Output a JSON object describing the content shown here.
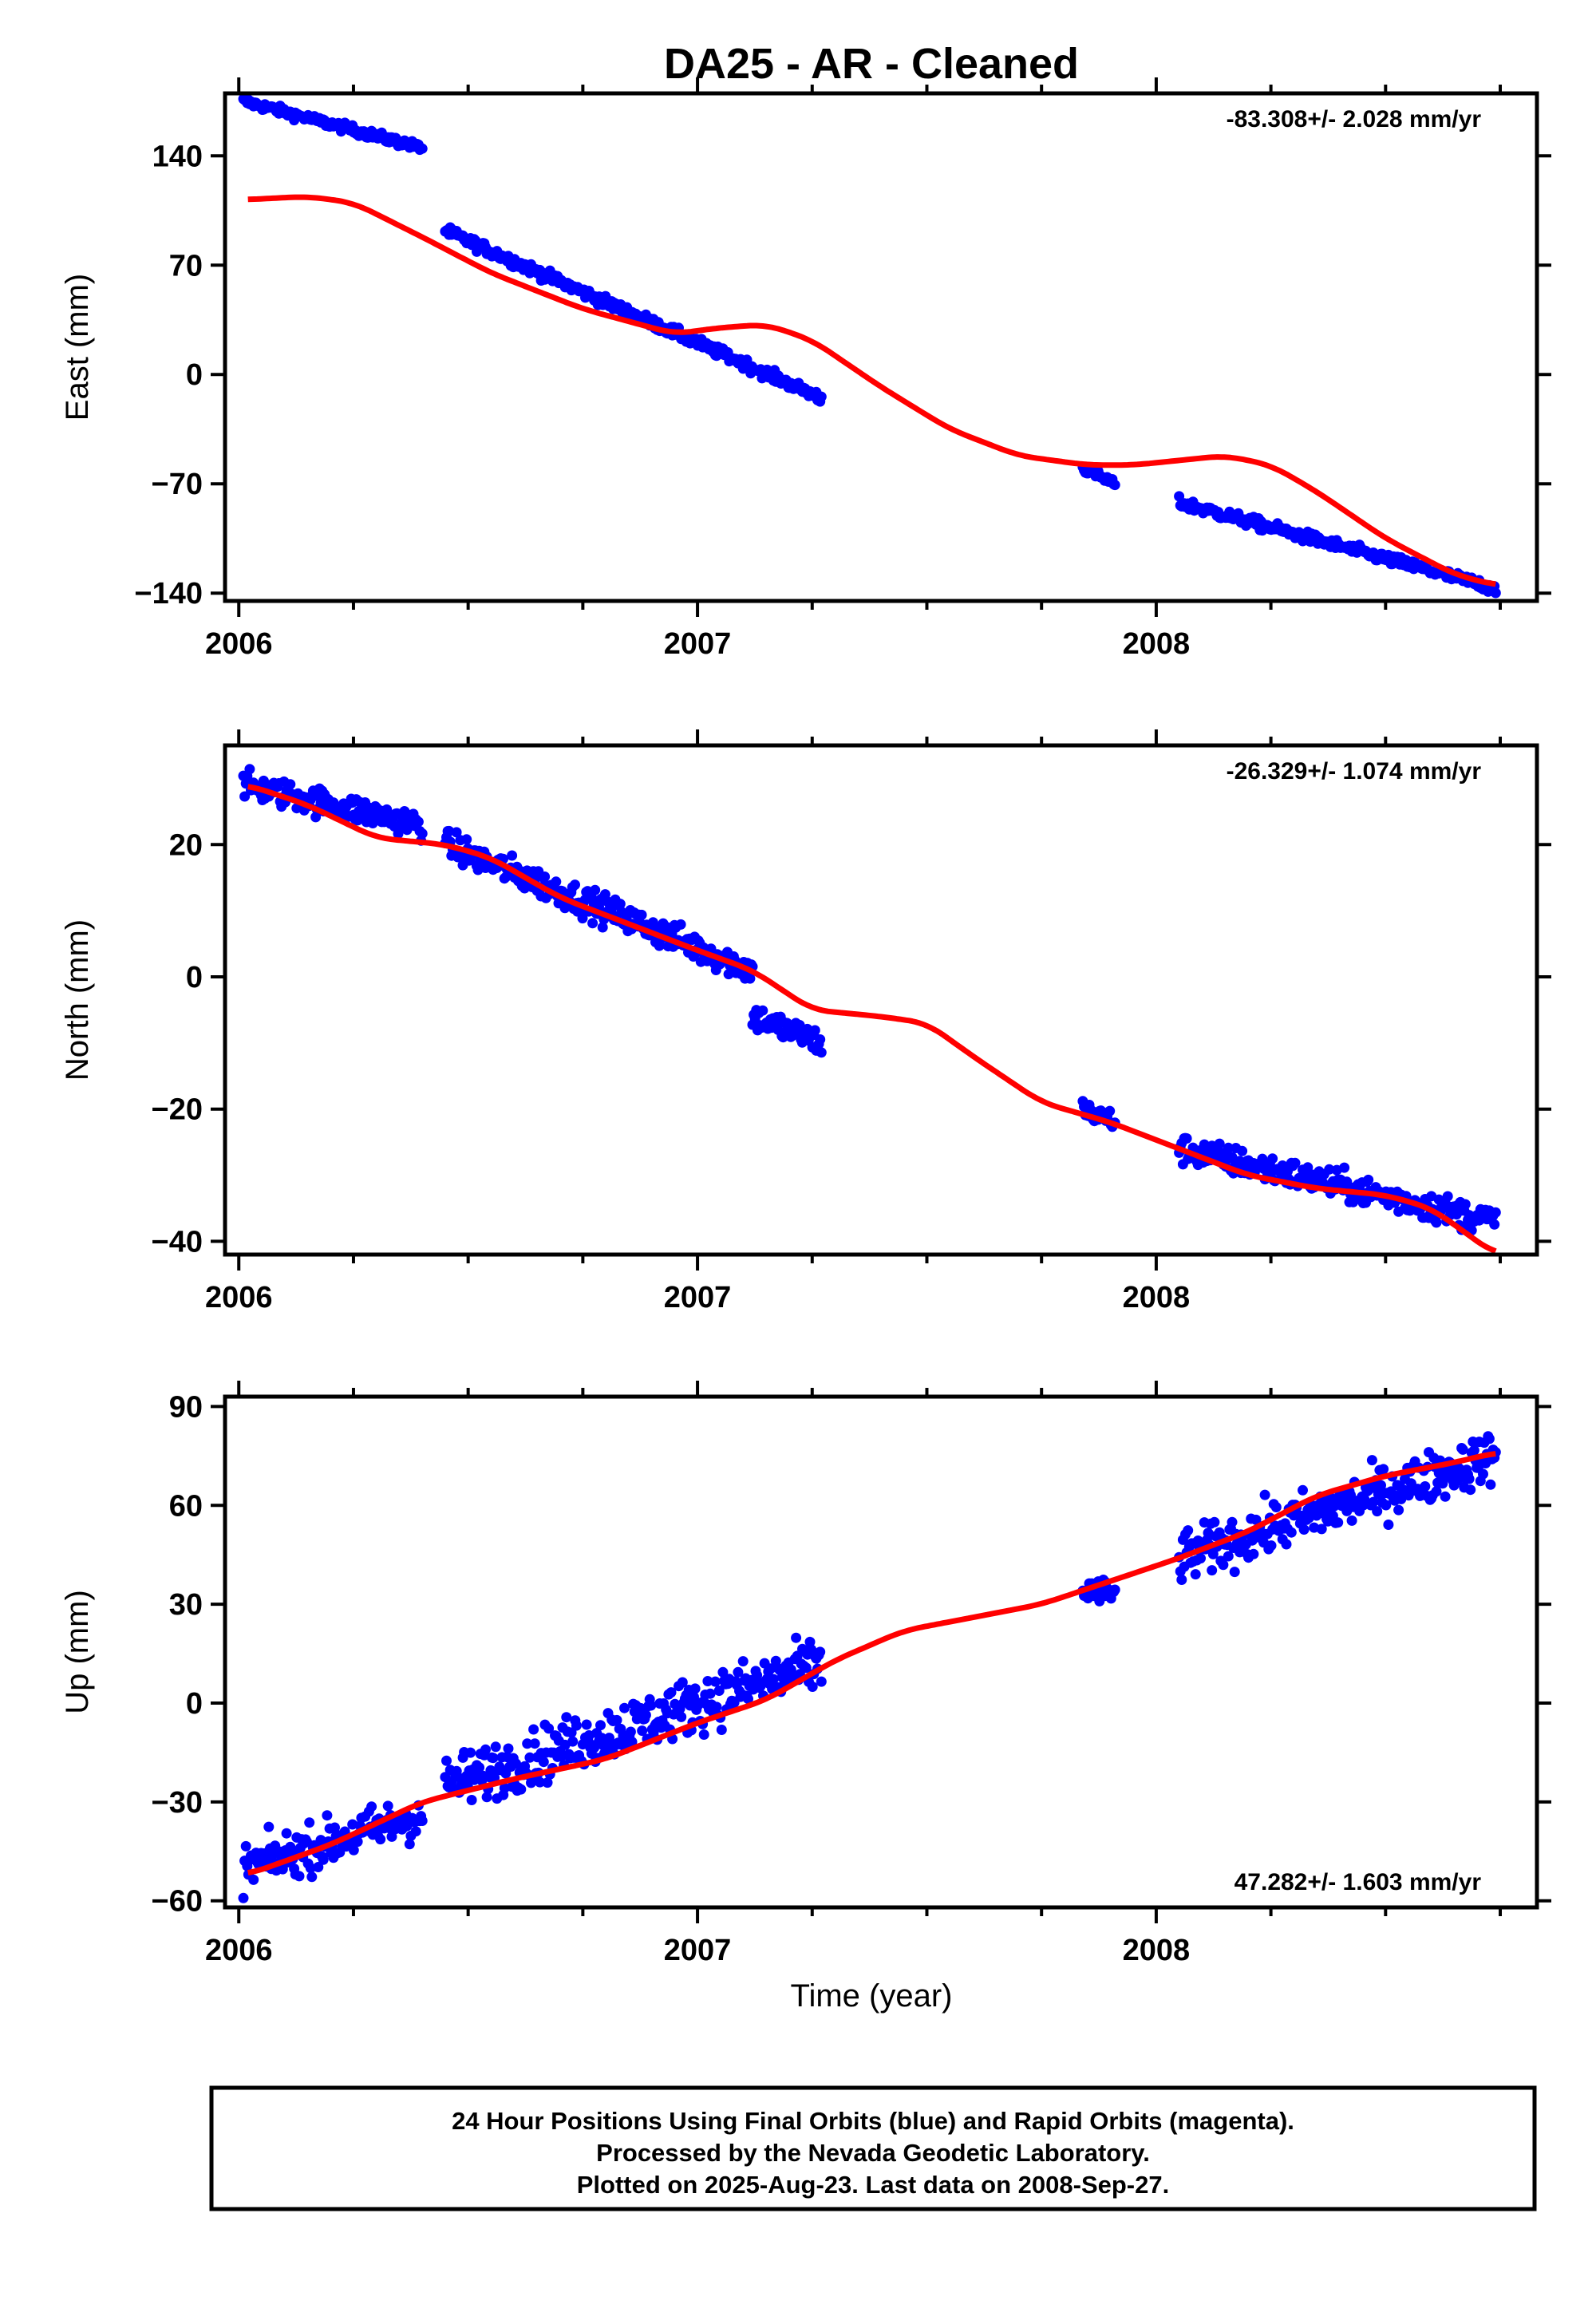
{
  "title": "DA25  - AR - Cleaned",
  "x_axis_label": "Time (year)",
  "footer": {
    "line1": "24 Hour Positions Using Final Orbits (blue) and Rapid Orbits (magenta).",
    "line2": "Processed by the Nevada Geodetic Laboratory.",
    "line3": "Plotted on 2025-Aug-23. Last data on 2008-Sep-27."
  },
  "colors": {
    "data_points": "#0000ff",
    "model_line": "#ff0000",
    "frame": "#000000"
  },
  "chart_data": [
    {
      "type": "scatter",
      "component": "east",
      "ylabel": "East (mm)",
      "rate": "-83.308+/- 2.028 mm/yr",
      "rate_position": "top-right",
      "xlim": [
        2005.97,
        2008.83
      ],
      "ylim": [
        -145,
        180
      ],
      "xticks": [
        2006,
        2007,
        2008
      ],
      "xtick_labels": [
        "2006",
        "2007",
        "2008"
      ],
      "yticks": [
        140,
        70,
        0,
        -70,
        -140
      ],
      "ytick_labels": [
        "140",
        "70",
        "0",
        "−70",
        "−140"
      ],
      "grid": false,
      "segments": [
        {
          "x_start": 2006.01,
          "x_end": 2006.4,
          "y_start": 175,
          "y_end": 145,
          "noise": 2.0
        },
        {
          "x_start": 2006.45,
          "x_end": 2007.27,
          "y_start": 92,
          "y_end": -15,
          "noise": 2.5
        },
        {
          "x_start": 2007.84,
          "x_end": 2007.91,
          "y_start": -60,
          "y_end": -70,
          "noise": 2.0
        },
        {
          "x_start": 2008.05,
          "x_end": 2008.74,
          "y_start": -82,
          "y_end": -137,
          "noise": 2.5
        }
      ],
      "model": {
        "x": [
          2006.02,
          2006.15,
          2006.25,
          2006.4,
          2006.55,
          2006.75,
          2006.95,
          2007.05,
          2007.15,
          2007.25,
          2007.4,
          2007.55,
          2007.7,
          2007.85,
          2007.95,
          2008.05,
          2008.15,
          2008.25,
          2008.35,
          2008.5,
          2008.65,
          2008.74
        ],
        "y": [
          112,
          114,
          110,
          88,
          65,
          42,
          26,
          30,
          32,
          22,
          -8,
          -35,
          -52,
          -58,
          -58,
          -55,
          -52,
          -58,
          -75,
          -105,
          -128,
          -135
        ]
      }
    },
    {
      "type": "scatter",
      "component": "north",
      "ylabel": "North (mm)",
      "rate": "-26.329+/- 1.074 mm/yr",
      "rate_position": "top-right",
      "xlim": [
        2005.97,
        2008.83
      ],
      "ylim": [
        -42,
        35
      ],
      "xticks": [
        2006,
        2007,
        2008
      ],
      "xtick_labels": [
        "2006",
        "2007",
        "2008"
      ],
      "yticks": [
        20,
        0,
        -20,
        -40
      ],
      "ytick_labels": [
        "20",
        "0",
        "−20",
        "−40"
      ],
      "grid": false,
      "segments": [
        {
          "x_start": 2006.01,
          "x_end": 2006.4,
          "y_start": 29,
          "y_end": 23,
          "noise": 1.5
        },
        {
          "x_start": 2006.45,
          "x_end": 2007.12,
          "y_start": 20,
          "y_end": 1,
          "noise": 1.6
        },
        {
          "x_start": 2007.12,
          "x_end": 2007.27,
          "y_start": -6,
          "y_end": -10,
          "noise": 1.5
        },
        {
          "x_start": 2007.84,
          "x_end": 2007.91,
          "y_start": -20,
          "y_end": -22,
          "noise": 1.2
        },
        {
          "x_start": 2008.05,
          "x_end": 2008.74,
          "y_start": -26,
          "y_end": -37,
          "noise": 1.6
        }
      ],
      "model": {
        "x": [
          2006.02,
          2006.15,
          2006.3,
          2006.45,
          2006.55,
          2006.7,
          2006.85,
          2007.0,
          2007.12,
          2007.25,
          2007.4,
          2007.5,
          2007.6,
          2007.75,
          2007.9,
          2008.05,
          2008.2,
          2008.35,
          2008.5,
          2008.6,
          2008.68,
          2008.74
        ],
        "y": [
          29,
          26,
          21,
          20,
          18,
          12,
          8,
          4,
          1,
          -5,
          -6,
          -7,
          -12,
          -19,
          -22,
          -26,
          -30,
          -32,
          -33,
          -35,
          -39,
          -42
        ]
      }
    },
    {
      "type": "scatter",
      "component": "up",
      "ylabel": "Up (mm)",
      "rate": "47.282+/- 1.603 mm/yr",
      "rate_position": "bottom-right",
      "xlim": [
        2005.97,
        2008.83
      ],
      "ylim": [
        -62,
        93
      ],
      "xticks": [
        2006,
        2007,
        2008
      ],
      "xtick_labels": [
        "2006",
        "2007",
        "2008"
      ],
      "yticks": [
        90,
        60,
        30,
        0,
        -30,
        -60
      ],
      "ytick_labels": [
        "90",
        "60",
        "30",
        "0",
        "−30",
        "−60"
      ],
      "grid": false,
      "segments": [
        {
          "x_start": 2006.01,
          "x_end": 2006.4,
          "y_start": -50,
          "y_end": -34,
          "noise": 5.0
        },
        {
          "x_start": 2006.45,
          "x_end": 2007.27,
          "y_start": -25,
          "y_end": 12,
          "noise": 6.0
        },
        {
          "x_start": 2007.84,
          "x_end": 2007.91,
          "y_start": 34,
          "y_end": 33,
          "noise": 3.0
        },
        {
          "x_start": 2008.05,
          "x_end": 2008.74,
          "y_start": 44,
          "y_end": 75,
          "noise": 5.5
        }
      ],
      "model": {
        "x": [
          2006.02,
          2006.2,
          2006.4,
          2006.6,
          2006.8,
          2007.0,
          2007.15,
          2007.3,
          2007.45,
          2007.6,
          2007.75,
          2007.9,
          2008.05,
          2008.2,
          2008.35,
          2008.5,
          2008.65,
          2008.74
        ],
        "y": [
          -52,
          -43,
          -30,
          -23,
          -17,
          -6,
          1,
          13,
          22,
          26,
          30,
          37,
          44,
          52,
          63,
          69,
          73,
          76
        ]
      }
    }
  ]
}
